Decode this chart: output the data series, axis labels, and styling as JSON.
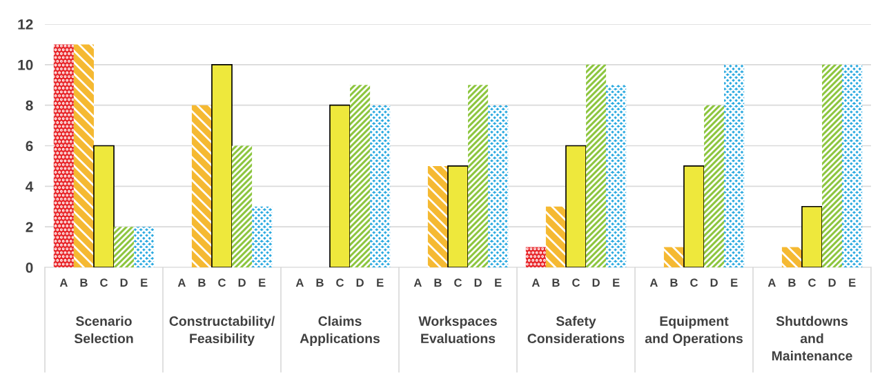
{
  "chart_data": {
    "type": "bar",
    "categories": [
      "Scenario\nSelection",
      "Constructability/\nFeasibility",
      "Claims\nApplications",
      "Workspaces\nEvaluations",
      "Safety\nConsiderations",
      "Equipment\nand Operations",
      "Shutdowns\nand\nMaintenance"
    ],
    "series": [
      {
        "name": "A",
        "color": "#e8262a",
        "values": [
          11,
          0,
          0,
          0,
          1,
          0,
          0
        ]
      },
      {
        "name": "B",
        "color": "#f5b932",
        "values": [
          11,
          8,
          0,
          5,
          3,
          1,
          1
        ]
      },
      {
        "name": "C",
        "color": "#eee83c",
        "values": [
          6,
          10,
          8,
          5,
          6,
          5,
          3
        ]
      },
      {
        "name": "D",
        "color": "#8dc63f",
        "values": [
          2,
          6,
          9,
          9,
          10,
          8,
          10
        ]
      },
      {
        "name": "E",
        "color": "#29a9e0",
        "values": [
          2,
          3,
          8,
          8,
          9,
          10,
          10
        ]
      }
    ],
    "ylim": [
      0,
      12
    ],
    "yticks": [
      0,
      2,
      4,
      6,
      8,
      10,
      12
    ],
    "grid": "y",
    "legend": false
  }
}
